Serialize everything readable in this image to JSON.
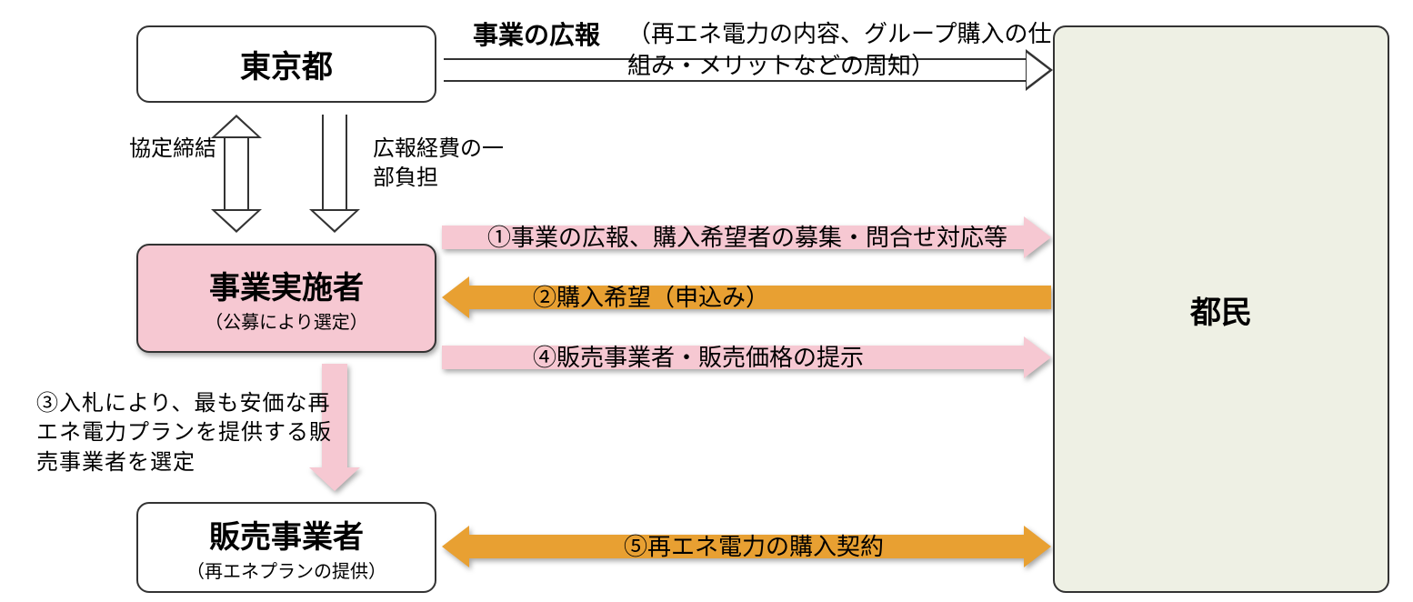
{
  "colors": {
    "pink": "#f6c8d2",
    "orange": "#e8a032",
    "citizen_bg": "#eef0e4",
    "border": "#333333",
    "text": "#000000",
    "red_num": "#c84a4a"
  },
  "nodes": {
    "tokyo": {
      "title": "東京都",
      "subtitle": ""
    },
    "operator": {
      "title": "事業実施者",
      "subtitle": "（公募により選定）"
    },
    "seller": {
      "title": "販売事業者",
      "subtitle": "（再エネプランの提供）"
    },
    "citizen": {
      "title": "都民",
      "subtitle": ""
    }
  },
  "labels": {
    "top_main": "事業の広報",
    "top_sub": "（再エネ電力の内容、グループ購入の仕組み・メリットなどの周知）",
    "agree": "協定締結",
    "koho": "広報経費の一部負担",
    "step1": "①事業の広報、購入希望者の募集・問合せ対応等",
    "step2": "②購入希望（申込み）",
    "step3": "③入札により、最も安価な再エネ電力プランを提供する販売事業者を選定",
    "step4": "④販売事業者・販売価格の提示",
    "step5": "⑤再エネ電力の購入契約"
  },
  "typography": {
    "title_fontsize": 34,
    "subtitle_fontsize": 20,
    "label_fontsize": 26
  },
  "arrows": {
    "top": {
      "type": "outline",
      "dir": "right"
    },
    "agree": {
      "type": "outline",
      "dir": "both-v"
    },
    "koho": {
      "type": "outline",
      "dir": "down"
    },
    "step1": {
      "type": "pink",
      "dir": "right"
    },
    "step2": {
      "type": "orange",
      "dir": "left"
    },
    "step3": {
      "type": "pink",
      "dir": "down"
    },
    "step4": {
      "type": "pink",
      "dir": "right"
    },
    "step5": {
      "type": "orange",
      "dir": "both-h"
    }
  }
}
